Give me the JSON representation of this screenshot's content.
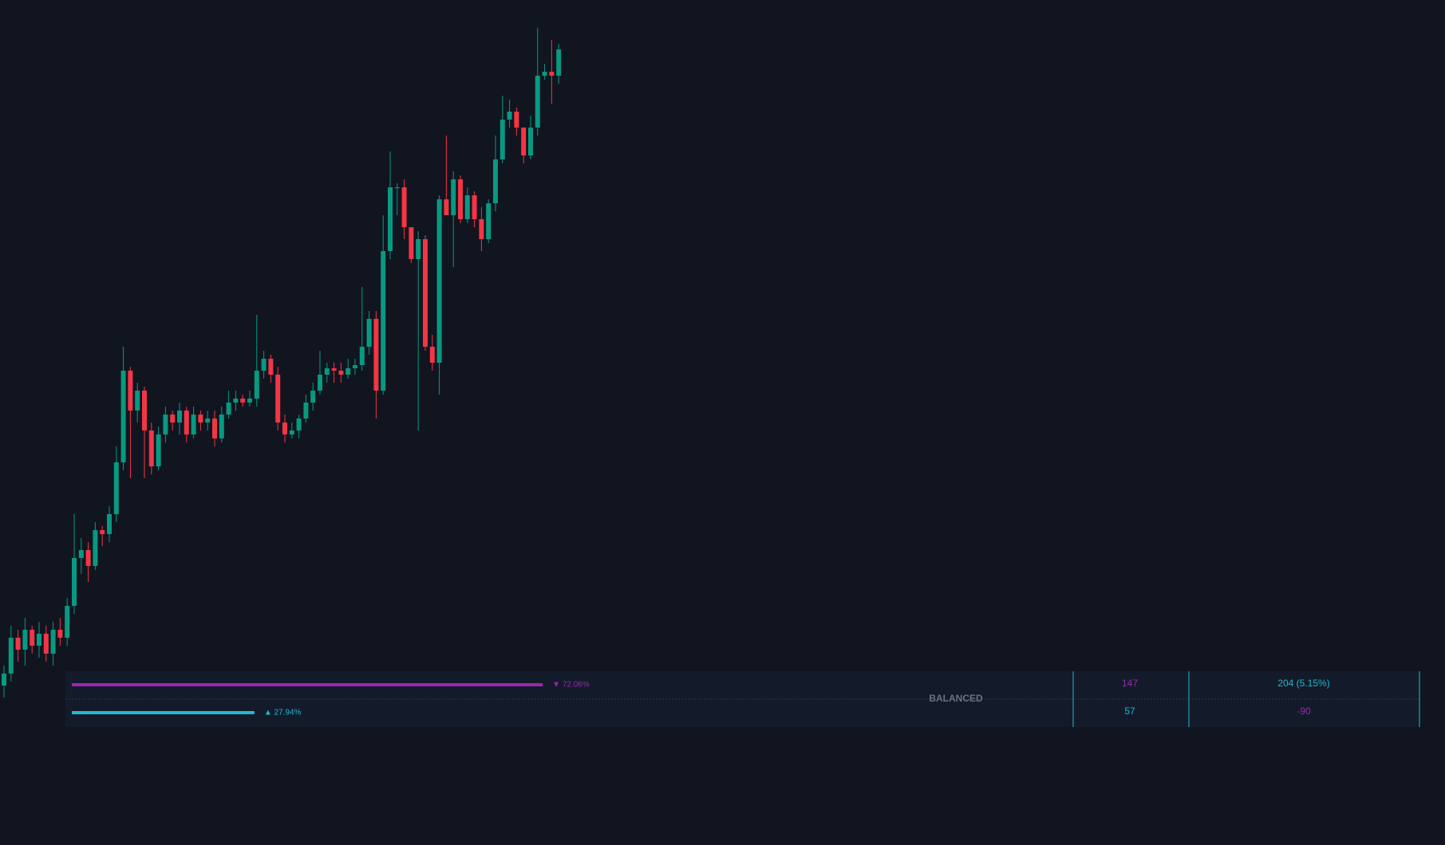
{
  "chart_data": {
    "type": "candlestick",
    "colors": {
      "up": "#089981",
      "down": "#f23645"
    },
    "ylim": [
      0,
      1060
    ],
    "open": [
      200,
      215,
      260,
      245,
      270,
      250,
      265,
      240,
      270,
      260,
      300,
      360,
      370,
      350,
      395,
      390,
      415,
      480,
      595,
      545,
      570,
      520,
      475,
      515,
      540,
      530,
      545,
      515,
      540,
      530,
      535,
      510,
      540,
      555,
      560,
      555,
      560,
      595,
      610,
      590,
      530,
      515,
      520,
      535,
      555,
      570,
      590,
      598,
      595,
      590,
      598,
      602,
      625,
      660,
      570,
      745,
      825,
      825,
      775,
      735,
      760,
      625,
      605,
      810,
      790,
      835,
      785,
      815,
      785,
      760,
      805,
      860,
      910,
      920,
      900,
      865,
      900,
      965,
      970,
      965
    ],
    "high": [
      225,
      275,
      270,
      285,
      275,
      280,
      275,
      280,
      285,
      310,
      415,
      385,
      380,
      405,
      400,
      425,
      500,
      625,
      600,
      580,
      575,
      530,
      525,
      550,
      545,
      555,
      550,
      550,
      545,
      545,
      545,
      550,
      570,
      570,
      565,
      570,
      665,
      620,
      615,
      600,
      540,
      530,
      540,
      565,
      580,
      620,
      605,
      605,
      605,
      610,
      610,
      700,
      670,
      670,
      790,
      870,
      830,
      835,
      775,
      770,
      765,
      640,
      815,
      890,
      845,
      840,
      825,
      820,
      800,
      810,
      890,
      940,
      935,
      925,
      900,
      915,
      1025,
      980,
      1010,
      1005
    ],
    "low": [
      185,
      205,
      230,
      225,
      240,
      235,
      230,
      225,
      250,
      250,
      290,
      340,
      330,
      345,
      375,
      380,
      405,
      470,
      460,
      530,
      460,
      465,
      470,
      505,
      520,
      515,
      505,
      510,
      520,
      520,
      500,
      505,
      535,
      545,
      550,
      550,
      550,
      585,
      580,
      520,
      505,
      510,
      510,
      530,
      545,
      565,
      580,
      580,
      580,
      585,
      590,
      595,
      615,
      535,
      565,
      735,
      790,
      760,
      730,
      520,
      620,
      595,
      565,
      790,
      725,
      780,
      780,
      775,
      745,
      755,
      795,
      855,
      900,
      890,
      855,
      860,
      890,
      960,
      930,
      955
    ],
    "close": [
      215,
      260,
      245,
      270,
      250,
      265,
      240,
      270,
      260,
      300,
      360,
      370,
      350,
      395,
      390,
      415,
      480,
      595,
      545,
      570,
      520,
      475,
      515,
      540,
      530,
      545,
      515,
      540,
      530,
      535,
      510,
      540,
      555,
      560,
      555,
      560,
      595,
      610,
      590,
      530,
      515,
      520,
      535,
      555,
      570,
      590,
      598,
      595,
      590,
      598,
      602,
      625,
      660,
      570,
      745,
      825,
      825,
      775,
      735,
      760,
      625,
      605,
      810,
      790,
      835,
      785,
      815,
      785,
      760,
      805,
      860,
      910,
      920,
      900,
      865,
      900,
      965,
      970,
      965,
      998
    ],
    "panel": {
      "bars": [
        {
          "value": 72.06,
          "value_label": "▼ 72.06%",
          "color": "#9c27b0"
        },
        {
          "value": 27.94,
          "value_label": "▲ 27.94%",
          "color": "#22b8cf"
        }
      ],
      "status": "BALANCED",
      "cells": [
        [
          147,
          "204 (5.15%)"
        ],
        [
          57,
          -90
        ]
      ],
      "cell_colors": [
        [
          "#9c27b0",
          "#22b8cf"
        ],
        [
          "#22b8cf",
          "#9c27b0"
        ]
      ]
    }
  }
}
